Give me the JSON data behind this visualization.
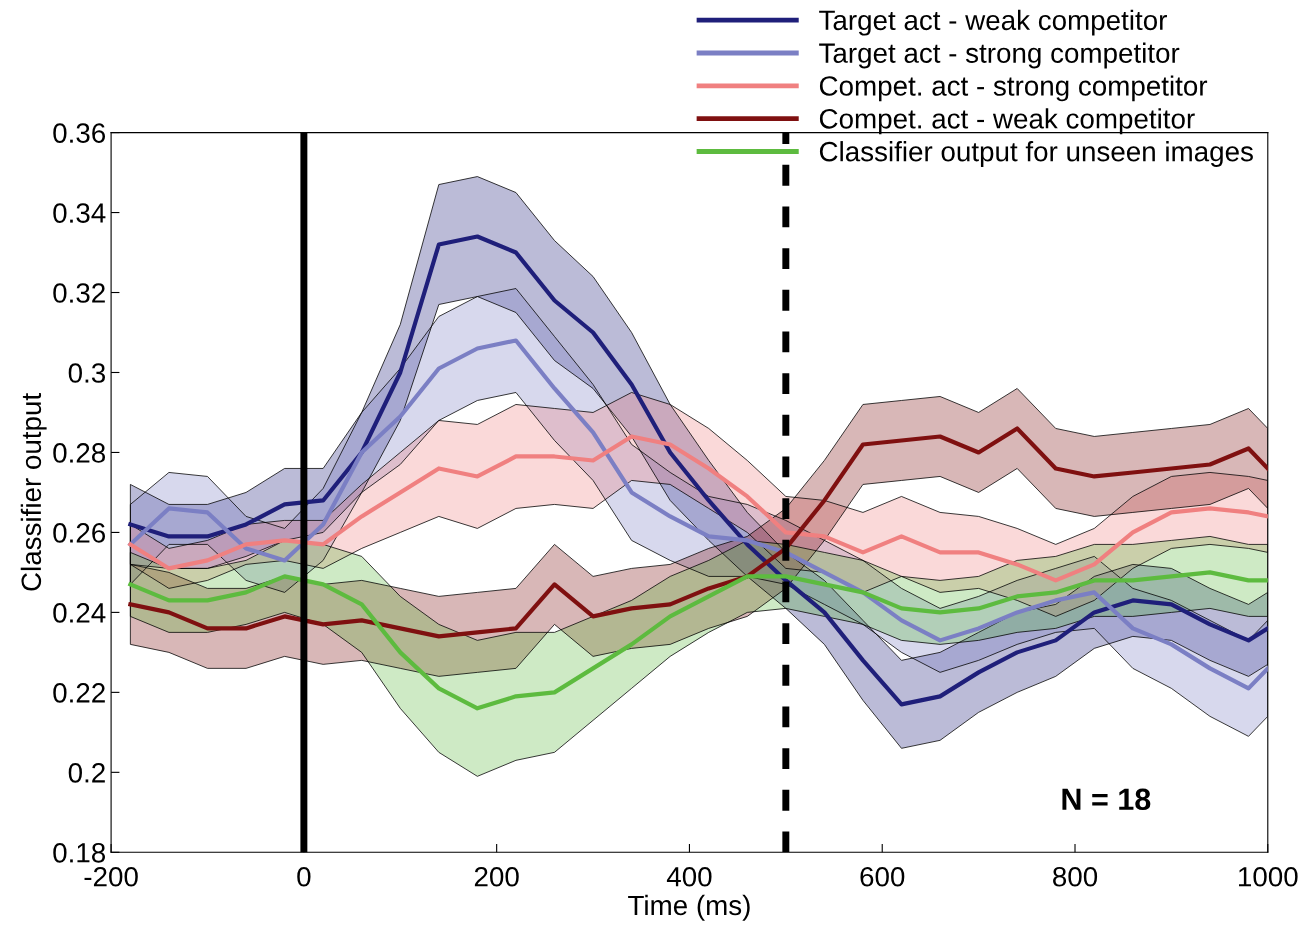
{
  "chart_data": {
    "type": "line",
    "xlabel": "Time (ms)",
    "ylabel": "Classifier output",
    "xlim": [
      -200,
      1000
    ],
    "xticks": [
      -200,
      0,
      200,
      400,
      600,
      800,
      1000
    ],
    "ylim": [
      0.18,
      0.36
    ],
    "yticks": [
      0.18,
      0.2,
      0.22,
      0.24,
      0.26,
      0.28,
      0.3,
      0.32,
      0.34,
      0.36
    ],
    "grid": false,
    "legend": "top right",
    "line_style": "solid",
    "marker": "none",
    "x": [
      -180,
      -140,
      -100,
      -60,
      -20,
      20,
      60,
      100,
      140,
      180,
      220,
      260,
      300,
      340,
      380,
      420,
      460,
      500,
      540,
      580,
      620,
      660,
      700,
      740,
      780,
      820,
      860,
      900,
      940,
      980,
      1000
    ],
    "series": [
      {
        "name": "Target act - weak competitor",
        "color": "#1f1f7a",
        "values": [
          0.262,
          0.259,
          0.259,
          0.262,
          0.267,
          0.268,
          0.28,
          0.3,
          0.332,
          0.334,
          0.33,
          0.318,
          0.31,
          0.297,
          0.28,
          0.268,
          0.257,
          0.248,
          0.24,
          0.228,
          0.217,
          0.219,
          0.225,
          0.23,
          0.233,
          0.24,
          0.243,
          0.242,
          0.237,
          0.233,
          0.236
        ],
        "lower": [
          0.252,
          0.251,
          0.251,
          0.254,
          0.258,
          0.26,
          0.27,
          0.288,
          0.317,
          0.319,
          0.315,
          0.303,
          0.296,
          0.284,
          0.268,
          0.258,
          0.249,
          0.241,
          0.232,
          0.218,
          0.206,
          0.208,
          0.215,
          0.22,
          0.224,
          0.231,
          0.234,
          0.233,
          0.228,
          0.224,
          0.227
        ],
        "upper": [
          0.272,
          0.267,
          0.267,
          0.27,
          0.276,
          0.276,
          0.29,
          0.312,
          0.347,
          0.349,
          0.345,
          0.333,
          0.324,
          0.31,
          0.292,
          0.278,
          0.265,
          0.255,
          0.248,
          0.238,
          0.228,
          0.23,
          0.235,
          0.24,
          0.242,
          0.249,
          0.252,
          0.251,
          0.246,
          0.242,
          0.245
        ]
      },
      {
        "name": "Target act - strong competitor",
        "color": "#7b7fc4",
        "values": [
          0.257,
          0.266,
          0.265,
          0.256,
          0.253,
          0.262,
          0.28,
          0.289,
          0.301,
          0.306,
          0.308,
          0.296,
          0.285,
          0.27,
          0.264,
          0.259,
          0.258,
          0.255,
          0.25,
          0.245,
          0.238,
          0.233,
          0.236,
          0.24,
          0.243,
          0.245,
          0.236,
          0.232,
          0.226,
          0.221,
          0.226
        ],
        "lower": [
          0.247,
          0.257,
          0.257,
          0.248,
          0.245,
          0.253,
          0.27,
          0.277,
          0.288,
          0.293,
          0.295,
          0.283,
          0.273,
          0.258,
          0.253,
          0.249,
          0.249,
          0.247,
          0.242,
          0.237,
          0.23,
          0.225,
          0.228,
          0.232,
          0.235,
          0.236,
          0.226,
          0.221,
          0.214,
          0.209,
          0.214
        ],
        "upper": [
          0.267,
          0.275,
          0.274,
          0.264,
          0.261,
          0.271,
          0.29,
          0.301,
          0.314,
          0.319,
          0.321,
          0.309,
          0.297,
          0.282,
          0.275,
          0.269,
          0.267,
          0.263,
          0.258,
          0.253,
          0.246,
          0.241,
          0.244,
          0.248,
          0.251,
          0.254,
          0.246,
          0.243,
          0.238,
          0.233,
          0.238
        ]
      },
      {
        "name": "Compet. act - strong competitor",
        "color": "#f08080",
        "values": [
          0.257,
          0.251,
          0.253,
          0.257,
          0.258,
          0.257,
          0.264,
          0.27,
          0.276,
          0.274,
          0.279,
          0.279,
          0.278,
          0.284,
          0.282,
          0.276,
          0.269,
          0.26,
          0.259,
          0.255,
          0.259,
          0.255,
          0.255,
          0.252,
          0.248,
          0.252,
          0.26,
          0.265,
          0.266,
          0.265,
          0.264
        ],
        "lower": [
          0.252,
          0.246,
          0.248,
          0.252,
          0.253,
          0.251,
          0.256,
          0.26,
          0.264,
          0.261,
          0.266,
          0.267,
          0.266,
          0.273,
          0.272,
          0.266,
          0.26,
          0.251,
          0.25,
          0.245,
          0.249,
          0.245,
          0.246,
          0.243,
          0.239,
          0.243,
          0.251,
          0.256,
          0.257,
          0.256,
          0.255
        ],
        "upper": [
          0.262,
          0.256,
          0.258,
          0.262,
          0.263,
          0.263,
          0.272,
          0.28,
          0.288,
          0.287,
          0.292,
          0.291,
          0.29,
          0.295,
          0.292,
          0.286,
          0.278,
          0.269,
          0.268,
          0.265,
          0.269,
          0.265,
          0.264,
          0.261,
          0.257,
          0.261,
          0.269,
          0.274,
          0.275,
          0.274,
          0.273
        ]
      },
      {
        "name": "Compet. act - weak competitor",
        "color": "#7f1010",
        "values": [
          0.242,
          0.24,
          0.236,
          0.236,
          0.239,
          0.237,
          0.238,
          0.236,
          0.234,
          0.235,
          0.236,
          0.247,
          0.239,
          0.241,
          0.242,
          0.246,
          0.249,
          0.256,
          0.268,
          0.282,
          0.283,
          0.284,
          0.28,
          0.286,
          0.276,
          0.274,
          0.275,
          0.276,
          0.277,
          0.281,
          0.276
        ],
        "lower": [
          0.232,
          0.23,
          0.226,
          0.226,
          0.229,
          0.227,
          0.228,
          0.226,
          0.224,
          0.225,
          0.226,
          0.237,
          0.229,
          0.231,
          0.232,
          0.236,
          0.239,
          0.246,
          0.258,
          0.272,
          0.273,
          0.274,
          0.27,
          0.276,
          0.266,
          0.264,
          0.265,
          0.266,
          0.267,
          0.271,
          0.266
        ],
        "upper": [
          0.252,
          0.25,
          0.246,
          0.246,
          0.249,
          0.247,
          0.248,
          0.246,
          0.244,
          0.245,
          0.246,
          0.257,
          0.249,
          0.251,
          0.252,
          0.256,
          0.259,
          0.266,
          0.278,
          0.292,
          0.293,
          0.294,
          0.29,
          0.296,
          0.286,
          0.284,
          0.285,
          0.286,
          0.287,
          0.291,
          0.286
        ]
      },
      {
        "name": "Classifier output for unseen images",
        "color": "#5dbb3f",
        "values": [
          0.247,
          0.243,
          0.243,
          0.245,
          0.249,
          0.247,
          0.242,
          0.23,
          0.221,
          0.216,
          0.219,
          0.22,
          0.226,
          0.232,
          0.239,
          0.244,
          0.249,
          0.249,
          0.247,
          0.245,
          0.241,
          0.24,
          0.241,
          0.244,
          0.245,
          0.248,
          0.248,
          0.249,
          0.25,
          0.248,
          0.248
        ],
        "lower": [
          0.239,
          0.235,
          0.235,
          0.237,
          0.24,
          0.237,
          0.23,
          0.216,
          0.205,
          0.199,
          0.203,
          0.205,
          0.213,
          0.221,
          0.229,
          0.235,
          0.24,
          0.241,
          0.239,
          0.237,
          0.233,
          0.232,
          0.233,
          0.235,
          0.236,
          0.239,
          0.239,
          0.24,
          0.241,
          0.239,
          0.239
        ],
        "upper": [
          0.255,
          0.251,
          0.251,
          0.253,
          0.258,
          0.257,
          0.254,
          0.244,
          0.237,
          0.233,
          0.235,
          0.235,
          0.239,
          0.243,
          0.249,
          0.253,
          0.258,
          0.257,
          0.255,
          0.253,
          0.249,
          0.248,
          0.249,
          0.253,
          0.254,
          0.257,
          0.257,
          0.258,
          0.259,
          0.257,
          0.257
        ]
      }
    ],
    "ref_lines": [
      {
        "axis": "x",
        "value": 0,
        "color": "#000000",
        "line_style": "solid"
      },
      {
        "axis": "x",
        "value": 500,
        "color": "#000000",
        "line_style": "dashed"
      }
    ],
    "annotations": [
      "N = 18"
    ]
  }
}
